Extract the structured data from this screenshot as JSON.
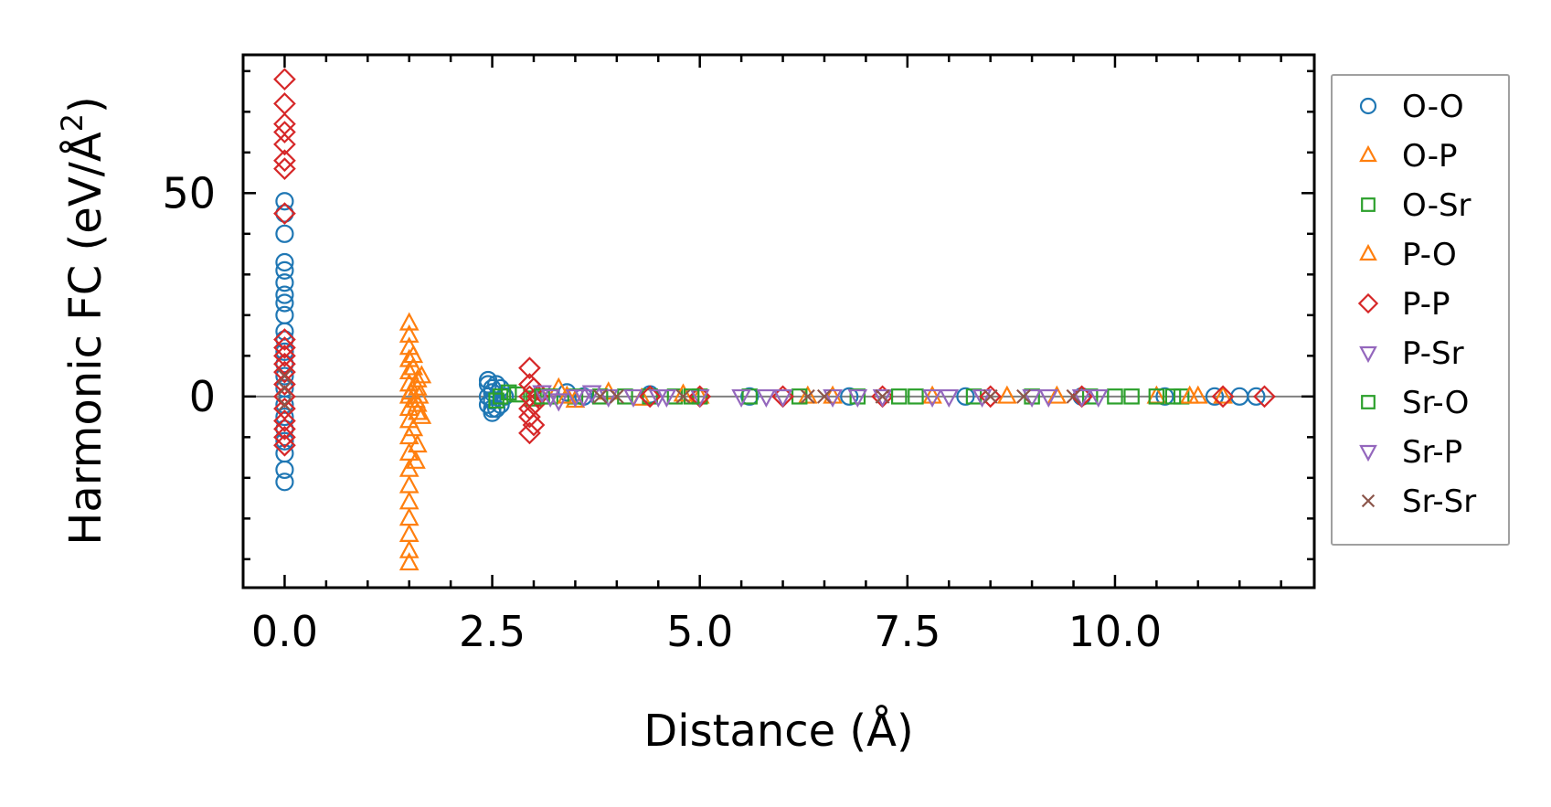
{
  "chart_data": {
    "type": "scatter",
    "xlabel": "Distance (Å)",
    "ylabel_main": "Harmonic FC (eV/Å",
    "ylabel_sup": "2",
    "ylabel_close": ")",
    "xlim": [
      -0.5,
      12.4
    ],
    "ylim": [
      -47,
      84
    ],
    "xticks": [
      {
        "value": 0.0,
        "label": "0.0"
      },
      {
        "value": 2.5,
        "label": "2.5"
      },
      {
        "value": 5.0,
        "label": "5.0"
      },
      {
        "value": 7.5,
        "label": "7.5"
      },
      {
        "value": 10.0,
        "label": "10.0"
      }
    ],
    "yticks": [
      {
        "value": 0,
        "label": "0"
      },
      {
        "value": 50,
        "label": "50"
      }
    ],
    "x_minor_step": 0.5,
    "y_minor_step": 10,
    "zero_line": true,
    "legend_position": "outside-right",
    "series": [
      {
        "name": "O-O",
        "marker": "circle",
        "color": "#1f77b4",
        "points": [
          [
            0,
            48
          ],
          [
            0,
            45
          ],
          [
            0,
            40
          ],
          [
            0,
            33
          ],
          [
            0,
            31
          ],
          [
            0,
            28
          ],
          [
            0,
            25
          ],
          [
            0,
            23
          ],
          [
            0,
            20
          ],
          [
            0,
            16
          ],
          [
            0,
            14
          ],
          [
            0,
            11
          ],
          [
            0,
            8
          ],
          [
            0,
            5
          ],
          [
            0,
            2
          ],
          [
            0,
            -2
          ],
          [
            0,
            -5
          ],
          [
            0,
            -8
          ],
          [
            0,
            -11
          ],
          [
            0,
            -14
          ],
          [
            0,
            -18
          ],
          [
            0,
            -21
          ],
          [
            2.45,
            4
          ],
          [
            2.45,
            3
          ],
          [
            2.5,
            2
          ],
          [
            2.5,
            1
          ],
          [
            2.45,
            0
          ],
          [
            2.5,
            -1
          ],
          [
            2.45,
            -2
          ],
          [
            2.5,
            -3
          ],
          [
            2.5,
            -4
          ],
          [
            2.55,
            3
          ],
          [
            2.55,
            -3
          ],
          [
            2.6,
            2
          ],
          [
            2.6,
            -2
          ],
          [
            2.65,
            0
          ],
          [
            3.4,
            1
          ],
          [
            3.6,
            0
          ],
          [
            4.4,
            0.5
          ],
          [
            5.6,
            0
          ],
          [
            6.8,
            0
          ],
          [
            8.2,
            0
          ],
          [
            9.6,
            0
          ],
          [
            10.6,
            0
          ],
          [
            11.2,
            0
          ],
          [
            11.5,
            0
          ],
          [
            11.7,
            0
          ]
        ]
      },
      {
        "name": "O-P",
        "marker": "triangle",
        "color": "#ff7f0e",
        "points": [
          [
            1.5,
            18
          ],
          [
            1.5,
            15
          ],
          [
            1.5,
            12
          ],
          [
            1.5,
            9
          ],
          [
            1.5,
            6
          ],
          [
            1.5,
            3
          ],
          [
            1.5,
            0
          ],
          [
            1.5,
            -3
          ],
          [
            1.5,
            -6
          ],
          [
            1.5,
            -10
          ],
          [
            1.5,
            -14
          ],
          [
            1.5,
            -18
          ],
          [
            1.5,
            -22
          ],
          [
            1.5,
            -26
          ],
          [
            1.5,
            -30
          ],
          [
            1.5,
            -34
          ],
          [
            1.5,
            -38
          ],
          [
            1.5,
            -41
          ],
          [
            1.55,
            7
          ],
          [
            1.6,
            4
          ],
          [
            1.6,
            -4
          ],
          [
            1.55,
            -8
          ],
          [
            1.6,
            2
          ],
          [
            1.6,
            -2
          ],
          [
            1.65,
            5
          ],
          [
            1.65,
            -5
          ],
          [
            1.55,
            10
          ],
          [
            1.6,
            -12
          ],
          [
            1.58,
            -16
          ],
          [
            1.62,
            0
          ],
          [
            3.3,
            2
          ],
          [
            3.5,
            -1
          ],
          [
            3.9,
            1
          ],
          [
            4.3,
            -0.5
          ],
          [
            5.0,
            0
          ],
          [
            6.3,
            0
          ],
          [
            7.8,
            0
          ],
          [
            9.3,
            0
          ],
          [
            10.5,
            0
          ],
          [
            11.0,
            0
          ],
          [
            11.3,
            0
          ]
        ]
      },
      {
        "name": "O-Sr",
        "marker": "square",
        "color": "#2ca02c",
        "points": [
          [
            2.6,
            0
          ],
          [
            2.8,
            0.5
          ],
          [
            3.0,
            -0.5
          ],
          [
            3.2,
            0
          ],
          [
            3.5,
            0
          ],
          [
            3.8,
            0
          ],
          [
            4.1,
            0
          ],
          [
            4.4,
            0
          ],
          [
            4.7,
            0
          ],
          [
            5.0,
            0
          ],
          [
            5.6,
            0
          ],
          [
            6.2,
            0
          ],
          [
            6.9,
            0
          ],
          [
            7.6,
            0
          ],
          [
            8.3,
            0
          ],
          [
            9.0,
            0
          ],
          [
            9.7,
            0
          ],
          [
            10.2,
            0
          ],
          [
            10.5,
            0
          ],
          [
            10.8,
            0
          ]
        ]
      },
      {
        "name": "P-O",
        "marker": "triangle",
        "color": "#ff7f0e",
        "points": [
          [
            1.52,
            1
          ],
          [
            1.58,
            -1
          ],
          [
            3.4,
            0
          ],
          [
            4.8,
            0.5
          ],
          [
            6.6,
            0
          ],
          [
            8.7,
            0
          ],
          [
            10.9,
            0
          ]
        ]
      },
      {
        "name": "P-P",
        "marker": "diamond",
        "color": "#d62728",
        "points": [
          [
            0,
            78
          ],
          [
            0,
            72
          ],
          [
            0,
            67
          ],
          [
            0,
            65
          ],
          [
            0,
            62
          ],
          [
            0,
            58
          ],
          [
            0,
            56
          ],
          [
            0,
            45
          ],
          [
            0,
            14
          ],
          [
            0,
            12
          ],
          [
            0,
            10
          ],
          [
            0,
            8
          ],
          [
            0,
            6
          ],
          [
            0,
            3
          ],
          [
            0,
            0
          ],
          [
            0,
            -3
          ],
          [
            0,
            -6
          ],
          [
            0,
            -8
          ],
          [
            0,
            -10
          ],
          [
            0,
            -12
          ],
          [
            2.95,
            7
          ],
          [
            2.95,
            3
          ],
          [
            2.95,
            0
          ],
          [
            2.95,
            -3
          ],
          [
            2.95,
            -5
          ],
          [
            2.95,
            -9
          ],
          [
            3.0,
            2
          ],
          [
            3.0,
            -2
          ],
          [
            3.05,
            0
          ],
          [
            3.0,
            -7
          ],
          [
            4.4,
            0
          ],
          [
            5.0,
            0
          ],
          [
            6.0,
            0
          ],
          [
            7.2,
            0
          ],
          [
            8.5,
            0
          ],
          [
            9.6,
            0
          ],
          [
            11.3,
            0
          ],
          [
            11.8,
            0
          ]
        ]
      },
      {
        "name": "P-Sr",
        "marker": "triangle-down",
        "color": "#9467bd",
        "points": [
          [
            3.1,
            1
          ],
          [
            3.3,
            -1
          ],
          [
            3.5,
            0
          ],
          [
            3.7,
            1
          ],
          [
            3.9,
            0
          ],
          [
            4.2,
            0
          ],
          [
            4.6,
            0
          ],
          [
            5.0,
            0
          ],
          [
            5.5,
            0
          ],
          [
            6.0,
            0
          ],
          [
            6.6,
            0
          ],
          [
            7.2,
            0
          ],
          [
            7.8,
            0
          ],
          [
            8.4,
            0
          ],
          [
            9.0,
            0
          ],
          [
            9.6,
            0
          ]
        ]
      },
      {
        "name": "Sr-O",
        "marker": "square",
        "color": "#2ca02c",
        "points": [
          [
            2.55,
            -1
          ],
          [
            2.7,
            1
          ],
          [
            3.1,
            0
          ],
          [
            4.9,
            0
          ],
          [
            7.4,
            0
          ],
          [
            10.0,
            0
          ],
          [
            10.7,
            0
          ]
        ]
      },
      {
        "name": "Sr-P",
        "marker": "triangle-down",
        "color": "#9467bd",
        "points": [
          [
            3.2,
            0
          ],
          [
            3.6,
            0
          ],
          [
            4.5,
            0
          ],
          [
            5.8,
            0
          ],
          [
            6.9,
            0
          ],
          [
            8.0,
            0
          ],
          [
            9.2,
            0
          ],
          [
            9.8,
            0
          ]
        ]
      },
      {
        "name": "Sr-Sr",
        "marker": "x",
        "color": "#8c564b",
        "points": [
          [
            0,
            2
          ],
          [
            0,
            -2
          ],
          [
            0,
            5
          ],
          [
            3.8,
            0
          ],
          [
            4.0,
            0
          ],
          [
            4.8,
            0
          ],
          [
            6.3,
            0
          ],
          [
            6.5,
            0
          ],
          [
            7.2,
            0
          ],
          [
            8.5,
            0
          ],
          [
            8.9,
            0
          ],
          [
            9.5,
            0
          ]
        ]
      }
    ]
  }
}
